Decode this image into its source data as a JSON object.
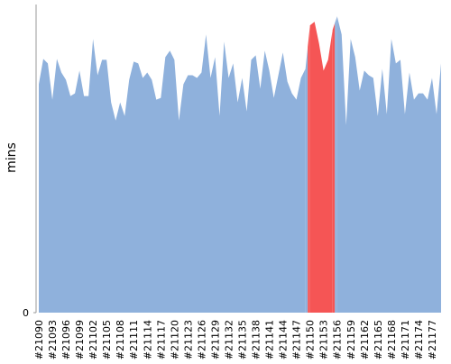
{
  "chart_data": {
    "type": "area",
    "y_label": "mins",
    "categories": [
      "#21090",
      null,
      null,
      "#21093",
      null,
      null,
      "#21096",
      null,
      null,
      "#21099",
      null,
      null,
      "#21102",
      null,
      null,
      "#21105",
      null,
      null,
      "#21108",
      null,
      null,
      "#21111",
      null,
      null,
      "#21114",
      null,
      null,
      "#21117",
      null,
      null,
      "#21120",
      null,
      null,
      "#21123",
      null,
      null,
      "#21126",
      null,
      null,
      "#21129",
      null,
      null,
      "#21132",
      null,
      null,
      "#21135",
      null,
      null,
      "#21138",
      null,
      null,
      "#21141",
      null,
      null,
      "#21144",
      null,
      null,
      "#21147",
      null,
      null,
      "#21150",
      null,
      null,
      "#21153",
      null,
      null,
      "#21156",
      null,
      null,
      "#21159",
      null,
      null,
      "#21162",
      null,
      null,
      "#21165",
      null,
      null,
      "#21168",
      null,
      null,
      "#21171",
      null,
      null,
      "#21174",
      null,
      null,
      "#21177",
      null,
      null
    ],
    "series": [
      {
        "color": "#8fb1dc",
        "values": [
          25.2,
          28,
          27.5,
          23.5,
          28,
          26.5,
          25.7,
          23.9,
          24.2,
          26.7,
          23.9,
          23.9,
          30.2,
          26.2,
          27.9,
          27.9,
          23.2,
          21.2,
          23.2,
          21.7,
          25.7,
          27.7,
          27.5,
          25.9,
          26.5,
          25.7,
          23.5,
          23.7,
          28.2,
          28.9,
          27.9,
          21.2,
          25.2,
          26.2,
          26.2,
          25.9,
          26.5,
          30.7,
          25.9,
          28.2,
          21.7,
          29.9,
          25.9,
          27.5,
          23.2,
          25.9,
          22.2,
          27.9,
          28.4,
          24.7,
          28.9,
          26.7,
          23.7,
          26.2,
          28.7,
          25.5,
          24.2,
          23.5,
          25.9,
          26.9,
          null,
          null,
          null,
          null,
          null,
          null,
          32.7,
          30.7,
          20.7,
          30.2,
          28.2,
          24.5,
          26.7,
          26.2,
          25.9,
          21.7,
          26.9,
          21.9,
          30.2,
          27.5,
          27.9,
          21.9,
          26.5,
          23.5,
          24.2,
          24.2,
          23.5,
          25.9,
          21.9,
          27.5
        ]
      },
      {
        "color": "#f55555",
        "values": [
          null,
          null,
          null,
          null,
          null,
          null,
          null,
          null,
          null,
          null,
          null,
          null,
          null,
          null,
          null,
          null,
          null,
          null,
          null,
          null,
          null,
          null,
          null,
          null,
          null,
          null,
          null,
          null,
          null,
          null,
          null,
          null,
          null,
          null,
          null,
          null,
          null,
          null,
          null,
          null,
          null,
          null,
          null,
          null,
          null,
          null,
          null,
          null,
          null,
          null,
          null,
          null,
          null,
          null,
          null,
          null,
          null,
          null,
          null,
          null,
          31.7,
          32.1,
          29.7,
          26.7,
          27.9,
          31.2,
          null,
          null,
          null,
          null,
          null,
          null,
          null,
          null,
          null,
          null,
          null,
          null,
          null,
          null,
          null,
          null,
          null,
          null,
          null,
          null,
          null,
          null,
          null,
          null
        ]
      }
    ],
    "ylim": [
      0,
      34
    ],
    "yticks": [
      0
    ]
  }
}
